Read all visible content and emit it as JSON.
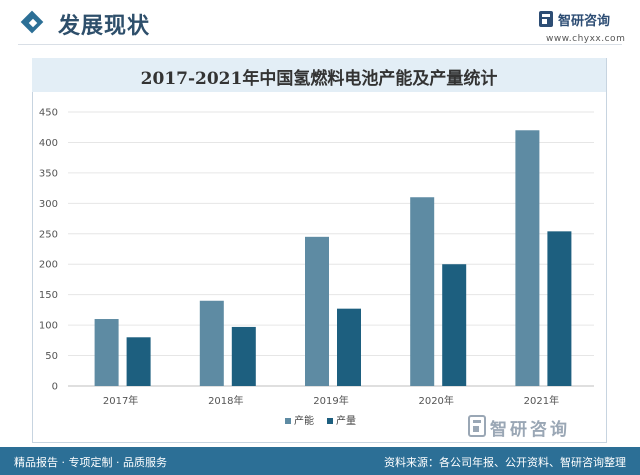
{
  "header": {
    "section_title": "发展现状",
    "brand_name": "智研咨询",
    "brand_url": "www.chyxx.com",
    "accent_color": "#2c6f96"
  },
  "footer": {
    "left_text": "精品报告 · 专项定制 · 品质服务",
    "right_text": "资料来源：各公司年报、公开资料、智研咨询整理",
    "logo_text": "智研咨询"
  },
  "chart_data": {
    "type": "bar",
    "title": "2017-2021年中国氢燃料电池产能及产量统计",
    "xlabel": "",
    "ylabel": "",
    "categories": [
      "2017年",
      "2018年",
      "2019年",
      "2020年",
      "2021年"
    ],
    "series": [
      {
        "name": "产能",
        "color": "#5e8ba3",
        "values": [
          110,
          140,
          245,
          310,
          420
        ]
      },
      {
        "name": "产量",
        "color": "#1d5f7f",
        "values": [
          80,
          97,
          127,
          200,
          254
        ]
      }
    ],
    "ylim": [
      0,
      450
    ],
    "yticks": [
      0,
      50,
      100,
      150,
      200,
      250,
      300,
      350,
      400,
      450
    ],
    "grid": true,
    "legend_position": "bottom-center"
  }
}
